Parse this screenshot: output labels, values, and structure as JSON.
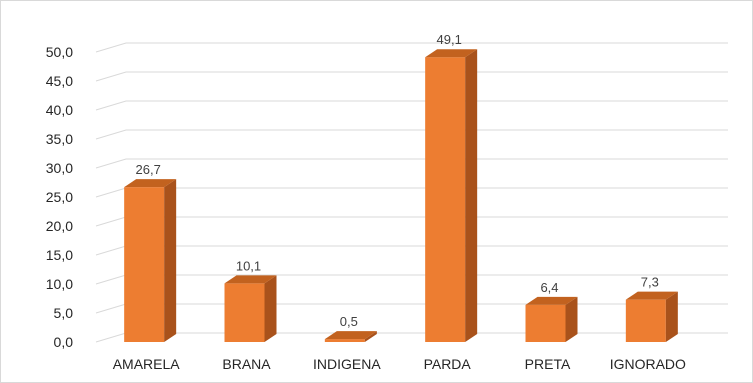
{
  "chart_data": {
    "type": "bar",
    "style": "3d-column",
    "categories": [
      "AMARELA",
      "BRANA",
      "INDIGENA",
      "PARDA",
      "PRETA",
      "IGNORADO"
    ],
    "values": [
      26.7,
      10.1,
      0.5,
      49.1,
      6.4,
      7.3
    ],
    "value_labels": [
      "26,7",
      "10,1",
      "0,5",
      "49,1",
      "6,4",
      "7,3"
    ],
    "y_ticks": [
      0,
      5,
      10,
      15,
      20,
      25,
      30,
      35,
      40,
      45,
      50
    ],
    "y_tick_labels": [
      "0,0",
      "5,0",
      "10,0",
      "15,0",
      "20,0",
      "25,0",
      "30,0",
      "35,0",
      "40,0",
      "45,0",
      "50,0"
    ],
    "ylim": [
      0,
      50
    ],
    "title": "",
    "xlabel": "",
    "ylabel": "",
    "grid": true,
    "legend": "none",
    "colors": {
      "bar_front": "#ED7D31",
      "bar_side": "#A9521B",
      "bar_top": "#C2621F",
      "grid": "#d9d9d9"
    }
  }
}
